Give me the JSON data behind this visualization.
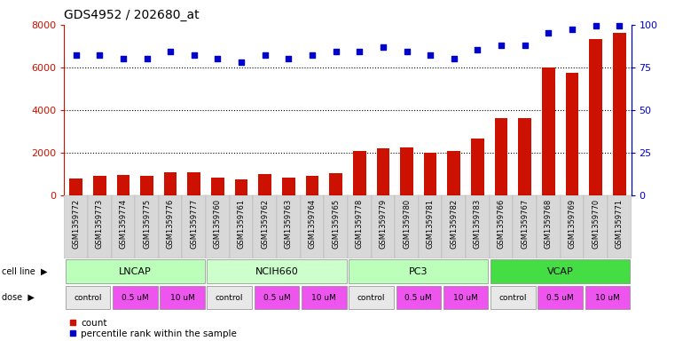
{
  "title": "GDS4952 / 202680_at",
  "samples": [
    "GSM1359772",
    "GSM1359773",
    "GSM1359774",
    "GSM1359775",
    "GSM1359776",
    "GSM1359777",
    "GSM1359760",
    "GSM1359761",
    "GSM1359762",
    "GSM1359763",
    "GSM1359764",
    "GSM1359765",
    "GSM1359778",
    "GSM1359779",
    "GSM1359780",
    "GSM1359781",
    "GSM1359782",
    "GSM1359783",
    "GSM1359766",
    "GSM1359767",
    "GSM1359768",
    "GSM1359769",
    "GSM1359770",
    "GSM1359771"
  ],
  "counts": [
    800,
    900,
    950,
    900,
    1100,
    1100,
    850,
    750,
    1000,
    850,
    900,
    1050,
    2100,
    2200,
    2250,
    2000,
    2100,
    2650,
    3600,
    3600,
    6000,
    5750,
    7300,
    7600
  ],
  "percentile_ranks": [
    82,
    82,
    80,
    80,
    84,
    82,
    80,
    78,
    82,
    80,
    82,
    84,
    84,
    87,
    84,
    82,
    80,
    85,
    88,
    88,
    95,
    97,
    99,
    99
  ],
  "cell_lines": [
    {
      "label": "LNCAP",
      "start": 0,
      "end": 6
    },
    {
      "label": "NCIH660",
      "start": 6,
      "end": 12
    },
    {
      "label": "PC3",
      "start": 12,
      "end": 18
    },
    {
      "label": "VCAP",
      "start": 18,
      "end": 24
    }
  ],
  "cell_line_colors": {
    "LNCAP": "#bbffbb",
    "NCIH660": "#ccffcc",
    "PC3": "#bbffbb",
    "VCAP": "#44dd44"
  },
  "dose_segments": [
    {
      "label": "control",
      "start": 0,
      "end": 2
    },
    {
      "label": "0.5 uM",
      "start": 2,
      "end": 4
    },
    {
      "label": "10 uM",
      "start": 4,
      "end": 6
    },
    {
      "label": "control",
      "start": 6,
      "end": 8
    },
    {
      "label": "0.5 uM",
      "start": 8,
      "end": 10
    },
    {
      "label": "10 uM",
      "start": 10,
      "end": 12
    },
    {
      "label": "control",
      "start": 12,
      "end": 14
    },
    {
      "label": "0.5 uM",
      "start": 14,
      "end": 16
    },
    {
      "label": "10 uM",
      "start": 16,
      "end": 18
    },
    {
      "label": "control",
      "start": 18,
      "end": 20
    },
    {
      "label": "0.5 uM",
      "start": 20,
      "end": 22
    },
    {
      "label": "10 uM",
      "start": 22,
      "end": 24
    }
  ],
  "dose_colors": {
    "control": "#e8e8e8",
    "0.5 uM": "#ee55ee",
    "10 uM": "#ee55ee"
  },
  "bar_color": "#cc1100",
  "dot_color": "#0000cc",
  "left_ylim": [
    0,
    8000
  ],
  "left_yticks": [
    0,
    2000,
    4000,
    6000,
    8000
  ],
  "right_ylim": [
    0,
    100
  ],
  "right_yticks": [
    0,
    25,
    50,
    75,
    100
  ],
  "grid_values": [
    2000,
    4000,
    6000
  ],
  "background_color": "#ffffff"
}
